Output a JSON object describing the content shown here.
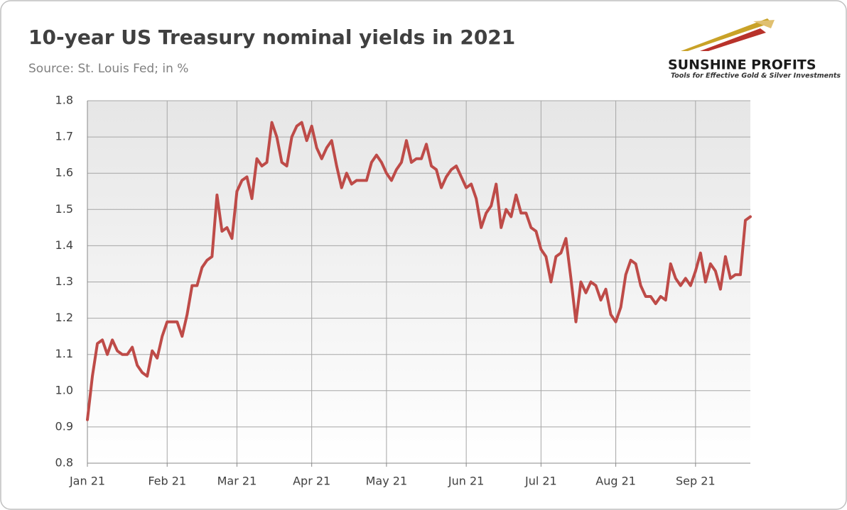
{
  "chart_data": {
    "type": "line",
    "title": "10-year US Treasury nominal yields in 2021",
    "subtitle": "Source: St. Louis Fed; in %",
    "logo": {
      "name": "SUNSHINE PROFITS",
      "tagline": "Tools for Effective Gold & Silver Investments"
    },
    "color": "#be4b48",
    "grid": true,
    "ylim": [
      0.8,
      1.8
    ],
    "yticks": [
      0.8,
      0.9,
      {
        "value": 1,
        "label": "1.0"
      },
      1.1,
      1.2,
      1.3,
      1.4,
      1.5,
      1.6,
      1.7,
      1.8
    ],
    "categories": [
      "Jan 21",
      null,
      null,
      null,
      null,
      null,
      null,
      null,
      null,
      null,
      null,
      null,
      null,
      null,
      null,
      null,
      "Feb 21",
      null,
      null,
      null,
      null,
      null,
      null,
      null,
      null,
      null,
      null,
      null,
      null,
      null,
      "Mar 21",
      null,
      null,
      null,
      null,
      null,
      null,
      null,
      null,
      null,
      null,
      null,
      null,
      null,
      null,
      "Apr 21",
      null,
      null,
      null,
      null,
      null,
      null,
      null,
      null,
      null,
      null,
      null,
      null,
      null,
      null,
      "May 21",
      null,
      null,
      null,
      null,
      null,
      null,
      null,
      null,
      null,
      null,
      null,
      null,
      null,
      null,
      null,
      "Jun 21",
      null,
      null,
      null,
      null,
      null,
      null,
      null,
      null,
      null,
      null,
      null,
      null,
      null,
      null,
      "Jul 21",
      null,
      null,
      null,
      null,
      null,
      null,
      null,
      null,
      null,
      null,
      null,
      null,
      null,
      null,
      "Aug 21",
      null,
      null,
      null,
      null,
      null,
      null,
      null,
      null,
      null,
      null,
      null,
      null,
      null,
      null,
      null,
      "Sep 21",
      null,
      null,
      null,
      null,
      null,
      null,
      null,
      null,
      null,
      null,
      null
    ],
    "values": [
      0.92,
      1.04,
      1.13,
      1.14,
      1.1,
      1.14,
      1.11,
      1.1,
      1.1,
      1.12,
      1.07,
      1.05,
      1.04,
      1.11,
      1.09,
      1.15,
      1.19,
      1.19,
      1.19,
      1.15,
      1.21,
      1.29,
      1.29,
      1.34,
      1.36,
      1.37,
      1.54,
      1.44,
      1.45,
      1.42,
      1.55,
      1.58,
      1.59,
      1.53,
      1.64,
      1.62,
      1.63,
      1.74,
      1.7,
      1.63,
      1.62,
      1.7,
      1.73,
      1.74,
      1.69,
      1.73,
      1.67,
      1.64,
      1.67,
      1.69,
      1.62,
      1.56,
      1.6,
      1.57,
      1.58,
      1.58,
      1.58,
      1.63,
      1.65,
      1.63,
      1.6,
      1.58,
      1.61,
      1.63,
      1.69,
      1.63,
      1.64,
      1.64,
      1.68,
      1.62,
      1.61,
      1.56,
      1.59,
      1.61,
      1.62,
      1.59,
      1.56,
      1.57,
      1.53,
      1.45,
      1.49,
      1.51,
      1.57,
      1.45,
      1.5,
      1.48,
      1.54,
      1.49,
      1.49,
      1.45,
      1.44,
      1.39,
      1.37,
      1.3,
      1.37,
      1.38,
      1.42,
      1.31,
      1.19,
      1.3,
      1.27,
      1.3,
      1.29,
      1.25,
      1.28,
      1.21,
      1.19,
      1.23,
      1.32,
      1.36,
      1.35,
      1.29,
      1.26,
      1.26,
      1.24,
      1.26,
      1.25,
      1.35,
      1.31,
      1.29,
      1.31,
      1.29,
      1.33,
      1.38,
      1.3,
      1.35,
      1.33,
      1.28,
      1.37,
      1.31,
      1.32,
      1.32,
      1.47,
      1.48
    ]
  }
}
